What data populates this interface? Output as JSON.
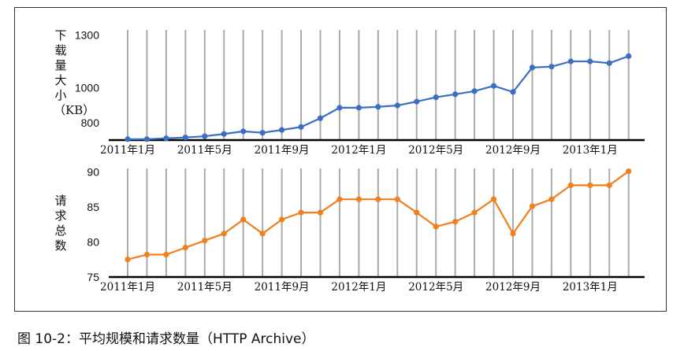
{
  "caption": "图 10-2：平均规模和请求数量（HTTP Archive）",
  "colors": {
    "top_series": "#3a6fc4",
    "bottom_series": "#f07f1e",
    "grid": "#aaaaaa",
    "axis": "#000000"
  },
  "chart_data": [
    {
      "type": "line",
      "ylabel": "下载量大小（KB）",
      "yticks": [
        800,
        1000,
        1300
      ],
      "ylim": [
        700,
        1330
      ],
      "x_tick_labels": [
        "2011年1月",
        "2011年5月",
        "2011年9月",
        "2012年1月",
        "2012年5月",
        "2012年9月",
        "2013年1月"
      ],
      "x_tick_index": [
        0,
        4,
        8,
        12,
        16,
        20,
        24
      ],
      "grid": "vertical",
      "series": [
        {
          "values": [
            705,
            705,
            710,
            715,
            722,
            735,
            750,
            742,
            758,
            775,
            825,
            885,
            885,
            890,
            898,
            920,
            945,
            962,
            980,
            1010,
            975,
            1115,
            1120,
            1150,
            1150,
            1140,
            1180
          ]
        }
      ]
    },
    {
      "type": "line",
      "ylabel": "请求总数",
      "yticks": [
        75,
        80,
        85,
        90
      ],
      "ylim": [
        75,
        90.5
      ],
      "x_tick_labels": [
        "2011年1月",
        "2011年5月",
        "2011年9月",
        "2012年1月",
        "2012年5月",
        "2012年9月",
        "2013年1月"
      ],
      "x_tick_index": [
        0,
        4,
        8,
        12,
        16,
        20,
        24
      ],
      "grid": "vertical",
      "series": [
        {
          "values": [
            77.5,
            78.2,
            78.2,
            79.2,
            80.2,
            81.2,
            83.2,
            81.2,
            83.2,
            84.2,
            84.2,
            86.1,
            86.1,
            86.1,
            86.1,
            84.2,
            82.2,
            82.9,
            84.2,
            86.1,
            81.2,
            85.1,
            86.1,
            88.1,
            88.1,
            88.1,
            90.1
          ]
        }
      ]
    }
  ]
}
